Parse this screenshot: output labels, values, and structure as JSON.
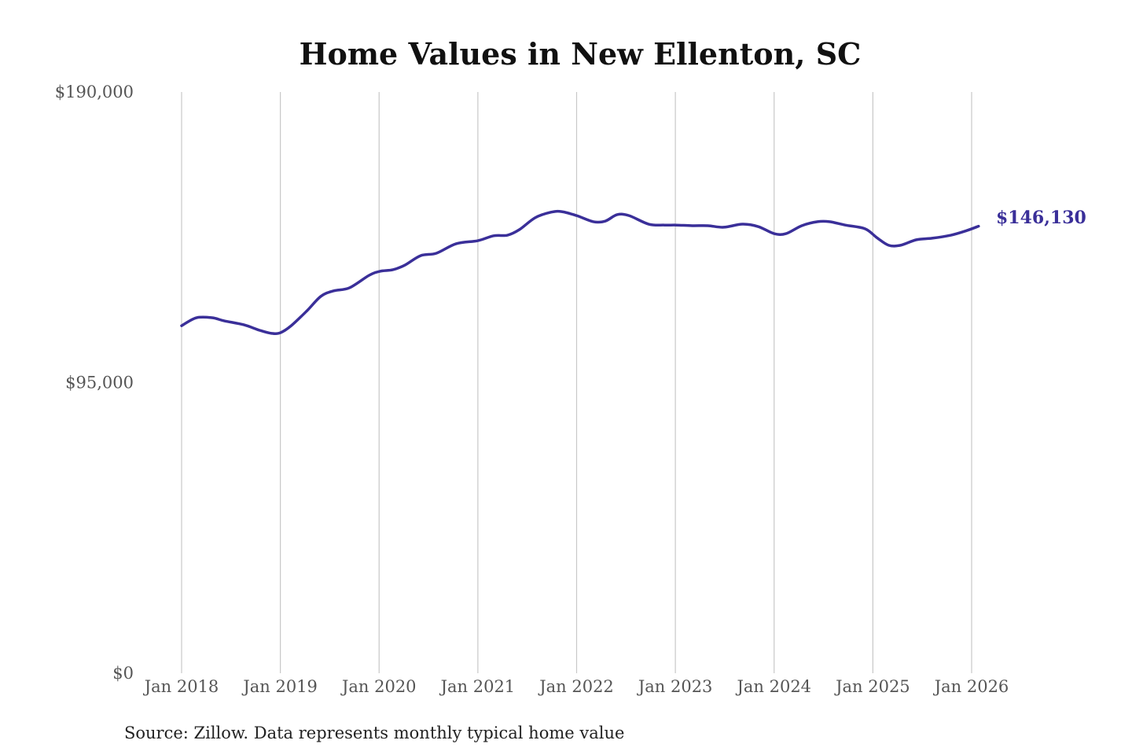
{
  "chart_data": {
    "type": "line",
    "title": "Home Values in New Ellenton, SC",
    "xlabel": "",
    "ylabel": "",
    "source": "Source: Zillow. Data represents monthly typical home value",
    "xlim": [
      2018,
      2026
    ],
    "ylim": [
      0,
      190000
    ],
    "grid": "vertical",
    "x_tick_labels": [
      "Jan 2018",
      "Jan 2019",
      "Jan 2020",
      "Jan 2021",
      "Jan 2022",
      "Jan 2023",
      "Jan 2024",
      "Jan 2025",
      "Jan 2026"
    ],
    "x_tick_values": [
      2018,
      2019,
      2020,
      2021,
      2022,
      2023,
      2024,
      2025,
      2026
    ],
    "y_tick_labels": [
      "$190,000",
      "$95,000",
      "$0"
    ],
    "y_tick_values": [
      190000,
      95000,
      0
    ],
    "end_label": "$146,130",
    "line_color": "#3a2f99",
    "series": [
      {
        "name": "Typical home value",
        "x": [
          2018.0,
          2018.15,
          2018.31,
          2018.43,
          2018.63,
          2018.79,
          2018.91,
          2019.0,
          2019.11,
          2019.27,
          2019.41,
          2019.54,
          2019.7,
          2019.9,
          2020.01,
          2020.14,
          2020.26,
          2020.42,
          2020.58,
          2020.78,
          2021.0,
          2021.16,
          2021.3,
          2021.42,
          2021.58,
          2021.74,
          2021.85,
          2022.0,
          2022.17,
          2022.29,
          2022.41,
          2022.53,
          2022.73,
          2022.89,
          2023.01,
          2023.17,
          2023.33,
          2023.49,
          2023.68,
          2023.84,
          2024.0,
          2024.12,
          2024.28,
          2024.44,
          2024.56,
          2024.72,
          2024.92,
          2025.04,
          2025.16,
          2025.28,
          2025.44,
          2025.6,
          2025.79,
          2025.95,
          2026.07
        ],
        "values": [
          113600,
          116200,
          116200,
          115200,
          113900,
          112100,
          111100,
          111300,
          113600,
          118500,
          123200,
          125000,
          126000,
          130100,
          131400,
          131900,
          133400,
          136500,
          137300,
          140400,
          141400,
          143000,
          143200,
          145000,
          148900,
          150700,
          150900,
          149600,
          147600,
          147800,
          149900,
          149600,
          146800,
          146500,
          146500,
          146300,
          146300,
          145800,
          146800,
          146000,
          143700,
          143700,
          146300,
          147600,
          147600,
          146500,
          145300,
          142400,
          139900,
          139900,
          141700,
          142200,
          143200,
          144700,
          146130
        ]
      }
    ]
  }
}
